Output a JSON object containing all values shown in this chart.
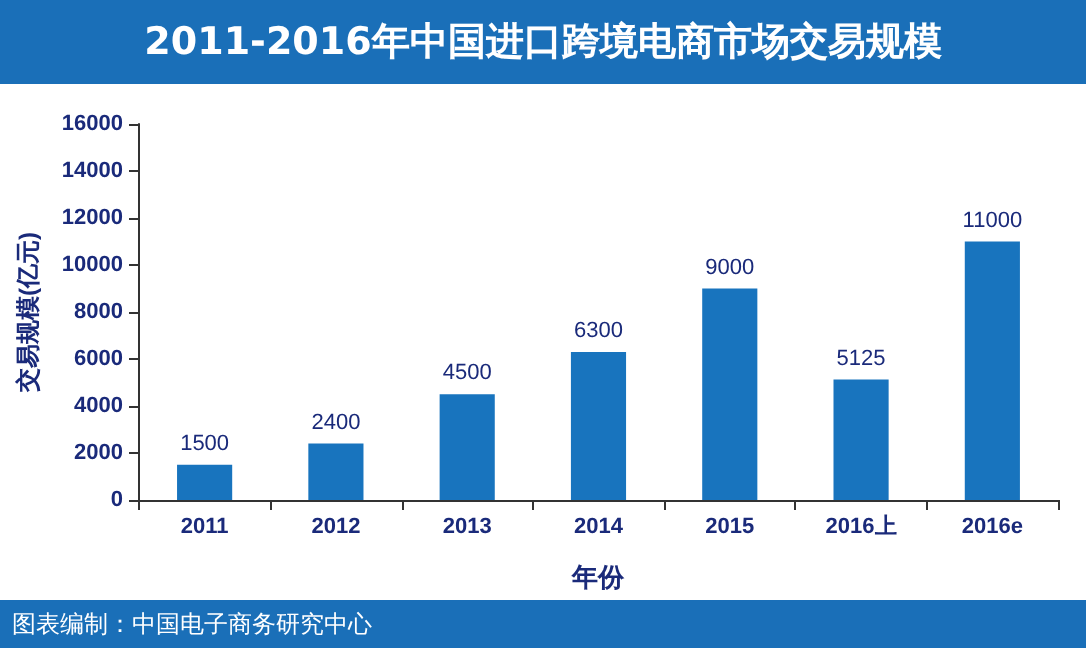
{
  "chart_data": {
    "type": "bar",
    "title": "2011-2016年中国进口跨境电商市场交易规模",
    "xlabel": "年份",
    "ylabel": "交易规模(亿元)",
    "categories": [
      "2011",
      "2012",
      "2013",
      "2014",
      "2015",
      "2016上",
      "2016e"
    ],
    "values": [
      1500,
      2400,
      4500,
      6300,
      9000,
      5125,
      11000
    ],
    "color": "#1874be",
    "ylim": [
      0,
      16000
    ],
    "yticks": [
      0,
      2000,
      4000,
      6000,
      8000,
      10000,
      12000,
      14000,
      16000
    ],
    "grid": false,
    "data_labels": true,
    "annotations": [
      "图表编制：中国电子商务研究中心"
    ]
  }
}
